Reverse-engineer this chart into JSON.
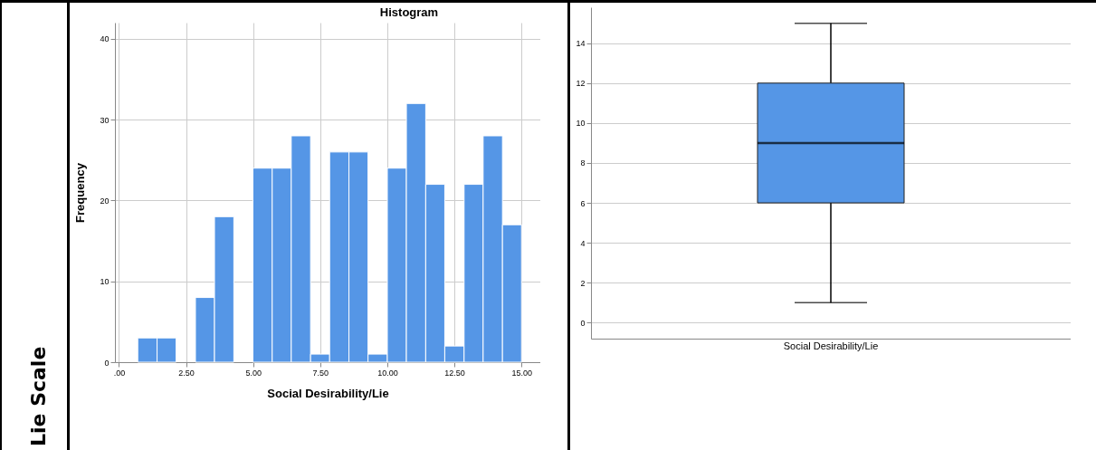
{
  "chart_data": [
    {
      "type": "histogram",
      "title": "Histogram",
      "xlabel": "Social Desirability/Lie",
      "ylabel": "Frequency",
      "annotations": [
        "Lie Scale"
      ],
      "color": "#5596e6",
      "bins": [
        0.7,
        1.42,
        2.13,
        2.85,
        3.56,
        4.28,
        4.99,
        5.71,
        6.42,
        7.14,
        7.85,
        8.57,
        9.28,
        10.0,
        10.71,
        11.43,
        12.14,
        12.86,
        13.57,
        14.29,
        15.0
      ],
      "values": [
        3,
        3,
        0,
        8,
        18,
        0,
        24,
        24,
        28,
        1,
        26,
        26,
        1,
        24,
        32,
        22,
        2,
        22,
        28,
        17
      ],
      "xlim": [
        -0.15,
        15.7
      ],
      "xticks": [
        {
          "value": 0,
          "label": ".00"
        },
        {
          "value": 2.5,
          "label": "2.50"
        },
        {
          "value": 5,
          "label": "5.00"
        },
        {
          "value": 7.5,
          "label": "7.50"
        },
        {
          "value": 10,
          "label": "10.00"
        },
        {
          "value": 12.5,
          "label": "12.50"
        },
        {
          "value": 15,
          "label": "15.00"
        }
      ],
      "ylim": [
        0,
        42
      ],
      "yticks": [
        0,
        10,
        20,
        30,
        40
      ],
      "grid": true
    },
    {
      "type": "box",
      "categories": [
        "Social Desirability/Lie"
      ],
      "color": "#5596e6",
      "boxes": [
        {
          "low": 1,
          "q1": 6,
          "median": 9,
          "q3": 12,
          "high": 15
        }
      ],
      "ylim": [
        -0.8,
        15.8
      ],
      "yticks": [
        0,
        2,
        4,
        6,
        8,
        10,
        12,
        14
      ],
      "grid": "y"
    }
  ]
}
